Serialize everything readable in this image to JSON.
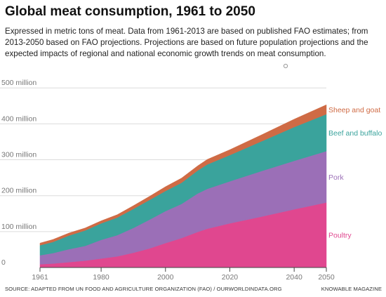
{
  "title": "Global meat consumption, 1961 to 2050",
  "subtitle": "Expressed in metric tons of meat. Data from 1961-2013 are based on published FAO estimates; from 2013-2050 based on FAO projections. Projections are based on future population projections and the expected impacts of regional and national economic growth trends on meat consumption.",
  "source": "SOURCE: ADAPTED FROM UN FOOD AND AGRICULTURE ORGANIZATION (FAO) / OURWORLDINDATA.ORG",
  "publisher": "KNOWABLE MAGAZINE",
  "chart_data": {
    "type": "area",
    "stacked": true,
    "x": [
      1961,
      1965,
      1970,
      1975,
      1980,
      1985,
      1990,
      1995,
      2000,
      2005,
      2010,
      2013,
      2020,
      2030,
      2040,
      2050
    ],
    "series": [
      {
        "name": "Poultry",
        "color": "#e0478f",
        "values": [
          9,
          11,
          15,
          19,
          25,
          31,
          41,
          53,
          68,
          82,
          99,
          108,
          123,
          142,
          162,
          181
        ]
      },
      {
        "name": "Pork",
        "color": "#9b6fb7",
        "values": [
          25,
          29,
          36,
          41,
          52,
          59,
          69,
          80,
          89,
          95,
          107,
          111,
          117,
          127,
          135,
          143
        ]
      },
      {
        "name": "Beef and buffalo",
        "color": "#3aa39c",
        "values": [
          28,
          31,
          38,
          43,
          46,
          49,
          53,
          55,
          56,
          59,
          64,
          68,
          73,
          83,
          94,
          103
        ]
      },
      {
        "name": "Sheep and goat",
        "color": "#cf6b45",
        "values": [
          6,
          7,
          7,
          7,
          7,
          8,
          9,
          10,
          12,
          13,
          13,
          14,
          15,
          18,
          22,
          26
        ]
      }
    ],
    "xticks": [
      1961,
      1980,
      2000,
      2020,
      2040,
      2050
    ],
    "yticks": [
      0,
      100,
      200,
      300,
      400,
      500
    ],
    "ytick_labels": [
      "0",
      "100 million",
      "200 million",
      "300 million",
      "400 million",
      "500 million"
    ],
    "xlim": [
      1961,
      2050
    ],
    "ylim": [
      0,
      520
    ],
    "grid": true
  }
}
